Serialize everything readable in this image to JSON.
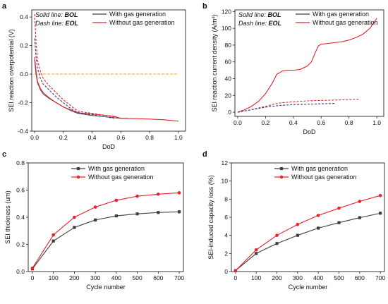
{
  "colors": {
    "with_gas": "#3d3d3d",
    "without_gas": "#e8242a",
    "zero_line": "#f0a500",
    "bol_with_gas": "#555555",
    "eol_with_gas": "#2e3b8f"
  },
  "chart_data": [
    {
      "panel": "a",
      "type": "line",
      "xlabel": "DoD",
      "ylabel": "SEI reaction overpotential (V)",
      "xlim": [
        -0.02,
        1.05
      ],
      "ylim": [
        -0.4,
        0.45
      ],
      "xticks": [
        0.0,
        0.2,
        0.4,
        0.6,
        0.8,
        1.0
      ],
      "xtick_labels": [
        "0.0",
        "0.2",
        "0.4",
        "0.6",
        "0.8",
        "1.0"
      ],
      "yticks": [
        -0.4,
        -0.2,
        0.0,
        0.2,
        0.4
      ],
      "ytick_labels": [
        "-0.4",
        "-0.2",
        "0.0",
        "0.2",
        "0.4"
      ],
      "note": {
        "solid_prefix": "Solid line: ",
        "solid_value": "BOL",
        "dash_prefix": "Dash line: ",
        "dash_value": "EOL"
      },
      "legend": [
        "With gas generation",
        "Without gas generation"
      ],
      "reference_line": {
        "y": 0.0,
        "x": [
          0.0,
          1.0
        ]
      },
      "series": [
        {
          "name": "With gas generation",
          "style": "solid",
          "x": [
            0.0,
            0.01,
            0.02,
            0.04,
            0.06,
            0.1,
            0.15,
            0.2,
            0.25,
            0.3,
            0.4,
            0.5,
            0.55,
            0.6,
            0.65
          ],
          "y": [
            0.1,
            0.0,
            -0.06,
            -0.11,
            -0.14,
            -0.17,
            -0.2,
            -0.23,
            -0.255,
            -0.275,
            -0.29,
            -0.3,
            -0.305,
            -0.31,
            -0.31
          ]
        },
        {
          "name": "Without gas generation",
          "style": "solid",
          "x": [
            0.0,
            0.01,
            0.02,
            0.04,
            0.06,
            0.1,
            0.15,
            0.2,
            0.25,
            0.3,
            0.4,
            0.5,
            0.55,
            0.6,
            0.7,
            0.8,
            0.9,
            1.0
          ],
          "y": [
            0.12,
            0.02,
            -0.05,
            -0.1,
            -0.13,
            -0.165,
            -0.2,
            -0.23,
            -0.25,
            -0.27,
            -0.28,
            -0.29,
            -0.295,
            -0.31,
            -0.312,
            -0.315,
            -0.32,
            -0.33
          ]
        },
        {
          "name": "With gas generation",
          "style": "dash",
          "x": [
            0.0,
            0.01,
            0.02,
            0.04,
            0.06,
            0.1,
            0.15,
            0.2,
            0.25,
            0.3,
            0.4,
            0.5,
            0.55
          ],
          "y": [
            0.25,
            0.12,
            0.04,
            -0.03,
            -0.07,
            -0.11,
            -0.16,
            -0.2,
            -0.24,
            -0.27,
            -0.285,
            -0.3,
            -0.31
          ]
        },
        {
          "name": "Without gas generation",
          "style": "dash",
          "x": [
            0.0,
            0.01,
            0.02,
            0.04,
            0.06,
            0.1,
            0.15,
            0.2,
            0.25,
            0.3,
            0.4,
            0.5,
            0.55,
            0.6
          ],
          "y": [
            0.42,
            0.22,
            0.1,
            0.02,
            -0.03,
            -0.08,
            -0.13,
            -0.18,
            -0.22,
            -0.26,
            -0.275,
            -0.29,
            -0.3,
            -0.31
          ]
        }
      ]
    },
    {
      "panel": "b",
      "type": "line",
      "xlabel": "DoD",
      "ylabel": "SEI reaction current density (A/m³)",
      "xlim": [
        -0.02,
        1.05
      ],
      "ylim": [
        -5,
        122
      ],
      "xticks": [
        0.0,
        0.2,
        0.4,
        0.6,
        0.8,
        1.0
      ],
      "xtick_labels": [
        "0.0",
        "0.2",
        "0.4",
        "0.6",
        "0.8",
        "1.0"
      ],
      "yticks": [
        0,
        20,
        40,
        60,
        80,
        100,
        120
      ],
      "ytick_labels": [
        "0",
        "20",
        "40",
        "60",
        "80",
        "100",
        "120"
      ],
      "note": {
        "solid_prefix": "Solid line: ",
        "solid_value": "BOL",
        "dash_prefix": "Dash line: ",
        "dash_value": "EOL"
      },
      "legend": [
        "With gas generation",
        "Without gas generation"
      ],
      "series": [
        {
          "name": "Without gas generation",
          "style": "solid",
          "x": [
            0.0,
            0.05,
            0.1,
            0.15,
            0.2,
            0.25,
            0.28,
            0.32,
            0.36,
            0.4,
            0.45,
            0.5,
            0.53,
            0.56,
            0.58,
            0.6,
            0.65,
            0.7,
            0.75,
            0.8,
            0.85,
            0.9,
            0.95,
            1.0
          ],
          "y": [
            0,
            3,
            7,
            13,
            22,
            35,
            45,
            49,
            50,
            50,
            51,
            55,
            60,
            72,
            79,
            81,
            82,
            83,
            84,
            86,
            89,
            93,
            100,
            112
          ]
        },
        {
          "name": "Without gas generation",
          "style": "dash",
          "x": [
            0.0,
            0.1,
            0.2,
            0.3,
            0.4,
            0.5,
            0.6,
            0.7,
            0.8,
            0.88
          ],
          "y": [
            0,
            3,
            7,
            11,
            12.5,
            13.5,
            14,
            14.5,
            15,
            15.5
          ]
        },
        {
          "name": "With gas generation",
          "style": "dash",
          "x": [
            0.0,
            0.1,
            0.2,
            0.3,
            0.4,
            0.5,
            0.6,
            0.7
          ],
          "y": [
            0,
            3,
            6,
            8,
            9,
            9.5,
            10,
            10.5
          ]
        }
      ]
    },
    {
      "panel": "c",
      "type": "line",
      "xlabel": "Cycle number",
      "ylabel": "SEI thickness (um)",
      "xlim": [
        -20,
        720
      ],
      "ylim": [
        0,
        0.8
      ],
      "xticks": [
        0,
        100,
        200,
        300,
        400,
        500,
        600,
        700
      ],
      "xtick_labels": [
        "0",
        "100",
        "200",
        "300",
        "400",
        "500",
        "600",
        "700"
      ],
      "yticks": [
        0.0,
        0.2,
        0.4,
        0.6,
        0.8
      ],
      "ytick_labels": [
        "0.0",
        "0.2",
        "0.4",
        "0.6",
        "0.8"
      ],
      "legend": [
        "With gas generation",
        "Without gas generation"
      ],
      "series": [
        {
          "name": "With gas generation",
          "x": [
            0,
            100,
            200,
            300,
            400,
            500,
            600,
            700
          ],
          "y": [
            0.02,
            0.225,
            0.325,
            0.38,
            0.41,
            0.425,
            0.435,
            0.44
          ]
        },
        {
          "name": "Without gas generation",
          "x": [
            0,
            100,
            200,
            300,
            400,
            500,
            600,
            700
          ],
          "y": [
            0.025,
            0.27,
            0.4,
            0.475,
            0.525,
            0.555,
            0.57,
            0.58
          ]
        }
      ]
    },
    {
      "panel": "d",
      "type": "line",
      "xlabel": "Cycle number",
      "ylabel": "SEI-induced capacity loss (%)",
      "xlim": [
        -20,
        720
      ],
      "ylim": [
        0,
        12
      ],
      "xticks": [
        0,
        100,
        200,
        300,
        400,
        500,
        600,
        700
      ],
      "xtick_labels": [
        "0",
        "100",
        "200",
        "300",
        "400",
        "500",
        "600",
        "700"
      ],
      "yticks": [
        0,
        2,
        4,
        6,
        8,
        10,
        12
      ],
      "ytick_labels": [
        "0",
        "2",
        "4",
        "6",
        "8",
        "10",
        "12"
      ],
      "legend": [
        "With gas generation",
        "Without gas generation"
      ],
      "series": [
        {
          "name": "With gas generation",
          "x": [
            0,
            100,
            200,
            300,
            400,
            500,
            600,
            700
          ],
          "y": [
            0.1,
            2.0,
            3.1,
            4.0,
            4.8,
            5.4,
            5.95,
            6.45
          ]
        },
        {
          "name": "Without gas generation",
          "x": [
            0,
            100,
            200,
            300,
            400,
            500,
            600,
            700
          ],
          "y": [
            0.1,
            2.4,
            4.0,
            5.2,
            6.2,
            7.0,
            7.75,
            8.4
          ]
        }
      ]
    }
  ]
}
